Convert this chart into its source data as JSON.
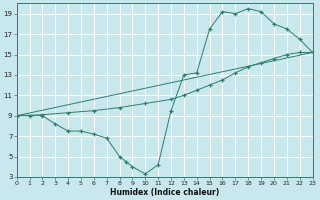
{
  "bg_color": "#c8e8ee",
  "grid_color": "#b0d8de",
  "line_color": "#2e7d6e",
  "xlim": [
    0,
    23
  ],
  "ylim": [
    3,
    20
  ],
  "xtick_labels": [
    "0",
    "1",
    "2",
    "3",
    "4",
    "5",
    "6",
    "7",
    "8",
    "9",
    "10",
    "11",
    "12",
    "13",
    "14",
    "15",
    "16",
    "17",
    "18",
    "19",
    "20",
    "21",
    "22",
    "23"
  ],
  "xticks": [
    0,
    1,
    2,
    3,
    4,
    5,
    6,
    7,
    8,
    9,
    10,
    11,
    12,
    13,
    14,
    15,
    16,
    17,
    18,
    19,
    20,
    21,
    22,
    23
  ],
  "yticks": [
    3,
    5,
    7,
    9,
    11,
    13,
    15,
    17,
    19
  ],
  "xlabel": "Humidex (Indice chaleur)",
  "line1_x": [
    0,
    1,
    2,
    3,
    4,
    5,
    6,
    7,
    8,
    8.5,
    9,
    10,
    11,
    12,
    13,
    14,
    15,
    16,
    17,
    18,
    19,
    20,
    21,
    22,
    23
  ],
  "line1_y": [
    9.0,
    9.0,
    9.0,
    8.2,
    7.5,
    7.5,
    7.2,
    6.8,
    5.0,
    4.5,
    4.0,
    3.3,
    4.2,
    9.5,
    13.0,
    13.2,
    17.5,
    19.2,
    19.0,
    19.5,
    19.2,
    18.0,
    17.5,
    16.5,
    15.2
  ],
  "line2_x": [
    0,
    2,
    4,
    6,
    8,
    10,
    12,
    13,
    14,
    15,
    16,
    17,
    18,
    19,
    20,
    21,
    22,
    23
  ],
  "line2_y": [
    9.0,
    9.1,
    9.3,
    9.5,
    9.8,
    10.2,
    10.6,
    11.0,
    11.5,
    12.0,
    12.5,
    13.2,
    13.8,
    14.2,
    14.6,
    15.0,
    15.2,
    15.2
  ],
  "line3_x": [
    0,
    23
  ],
  "line3_y": [
    9.0,
    15.2
  ]
}
